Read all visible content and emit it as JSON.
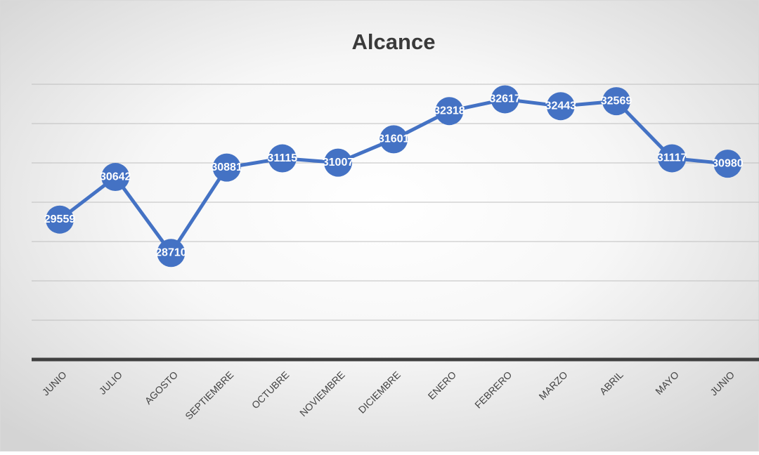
{
  "chart_data": {
    "type": "line",
    "title": "Alcance",
    "categories": [
      "JUNIO",
      "JULIO",
      "AGOSTO",
      "SEPTIEMBRE",
      "OCTUBRE",
      "NOVIEMBRE",
      "DICIEMBRE",
      "ENERO",
      "FEBRERO",
      "MARZO",
      "ABRIL",
      "MAYO",
      "JUNIO"
    ],
    "series": [
      {
        "name": "Alcance",
        "color": "#4472c4",
        "values": [
          29559,
          30642,
          28710,
          30881,
          31115,
          31007,
          31601,
          32318,
          32617,
          32443,
          32569,
          31117,
          30980
        ]
      }
    ],
    "ylim": [
      26000,
      33000
    ],
    "yticks": [
      26000,
      27000,
      28000,
      29000,
      30000,
      31000,
      32000,
      33000
    ],
    "grid": true
  }
}
